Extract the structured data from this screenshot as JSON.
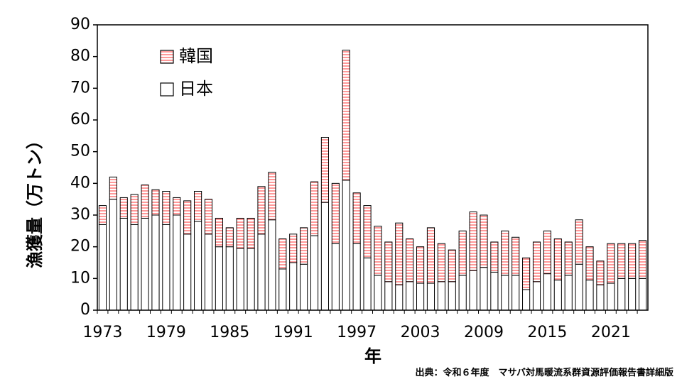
{
  "chart_data": {
    "type": "bar",
    "stacked": true,
    "xlabel": "年",
    "ylabel": "漁獲量（万トン）",
    "ylim": [
      0,
      90
    ],
    "yticks": [
      0,
      10,
      20,
      30,
      40,
      50,
      60,
      70,
      80,
      90
    ],
    "x_tick_labels": [
      "1973",
      "1979",
      "1985",
      "1991",
      "1997",
      "2003",
      "2009",
      "2015",
      "2021"
    ],
    "legend_placement": "top-left",
    "x": [
      1973,
      1974,
      1975,
      1976,
      1977,
      1978,
      1979,
      1980,
      1981,
      1982,
      1983,
      1984,
      1985,
      1986,
      1987,
      1988,
      1989,
      1990,
      1991,
      1992,
      1993,
      1994,
      1995,
      1996,
      1997,
      1998,
      1999,
      2000,
      2001,
      2002,
      2003,
      2004,
      2005,
      2006,
      2007,
      2008,
      2009,
      2010,
      2011,
      2012,
      2013,
      2014,
      2015,
      2016,
      2017,
      2018,
      2019,
      2020,
      2021,
      2022,
      2023,
      2024
    ],
    "series": [
      {
        "name": "日本",
        "color": "#ffffff",
        "values": [
          27,
          35,
          29,
          27,
          29,
          30,
          27,
          30,
          24,
          28,
          24,
          20,
          20,
          19.5,
          19.5,
          24,
          28.5,
          13,
          15,
          14.5,
          23.5,
          34,
          21,
          41,
          21,
          16.5,
          11,
          9,
          8,
          9,
          8.5,
          8.5,
          9,
          9,
          11,
          12.5,
          13.5,
          12,
          11,
          11,
          6.5,
          9,
          11.5,
          9.5,
          11,
          14.5,
          9.5,
          8,
          8.5,
          10,
          10,
          10
        ]
      },
      {
        "name": "韓国",
        "color": "#ff9999",
        "values": [
          6,
          7,
          6.5,
          9.5,
          10.5,
          8,
          10.5,
          5.5,
          10.5,
          9.5,
          11,
          9,
          6,
          9.5,
          9.5,
          15,
          15,
          9.5,
          9,
          11.5,
          17,
          20.5,
          19,
          41,
          16,
          16.5,
          15.5,
          12.5,
          19.5,
          13.5,
          11.5,
          17.5,
          12,
          10,
          14,
          18.5,
          16.5,
          9.5,
          14,
          12,
          10,
          12.5,
          13.5,
          13,
          10.5,
          14,
          10.5,
          7.5,
          12.5,
          11,
          11,
          12
        ]
      }
    ]
  },
  "source_note": "出典：令和６年度　マサバ対馬暖流系群資源評価報告書詳細版"
}
